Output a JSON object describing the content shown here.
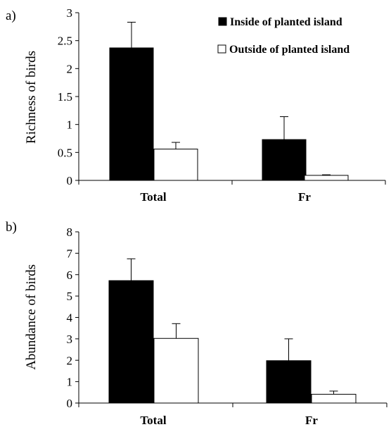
{
  "legend": {
    "inside": "Inside of planted island",
    "outside": "Outside of planted island"
  },
  "colors": {
    "inside": "#000000",
    "outside": "#ffffff",
    "stroke": "#000000"
  },
  "chart_data": [
    {
      "panel_label": "a)",
      "type": "bar",
      "ylabel": "Richness of birds",
      "xlabel": "",
      "categories": [
        "Total",
        "Fr"
      ],
      "ylim": [
        0,
        3
      ],
      "yticks": [
        "0",
        "0.5",
        "1",
        "1.5",
        "2",
        "2.5",
        "3"
      ],
      "series": [
        {
          "name": "Inside of planted island",
          "values": [
            2.37,
            0.73
          ],
          "errors": [
            0.46,
            0.41
          ]
        },
        {
          "name": "Outside of planted island",
          "values": [
            0.56,
            0.09
          ],
          "errors": [
            0.12,
            0.01
          ]
        }
      ],
      "legend_position": "top-right",
      "grid": false
    },
    {
      "panel_label": "b)",
      "type": "bar",
      "ylabel": "Abundance of birds",
      "xlabel": "",
      "categories": [
        "Total",
        "Fr"
      ],
      "ylim": [
        0,
        8
      ],
      "yticks": [
        "0",
        "1",
        "2",
        "3",
        "4",
        "5",
        "6",
        "7",
        "8"
      ],
      "series": [
        {
          "name": "Inside of planted island",
          "values": [
            5.72,
            1.98
          ],
          "errors": [
            1.02,
            1.02
          ]
        },
        {
          "name": "Outside of planted island",
          "values": [
            3.02,
            0.41
          ],
          "errors": [
            0.69,
            0.15
          ]
        }
      ],
      "grid": false
    }
  ]
}
